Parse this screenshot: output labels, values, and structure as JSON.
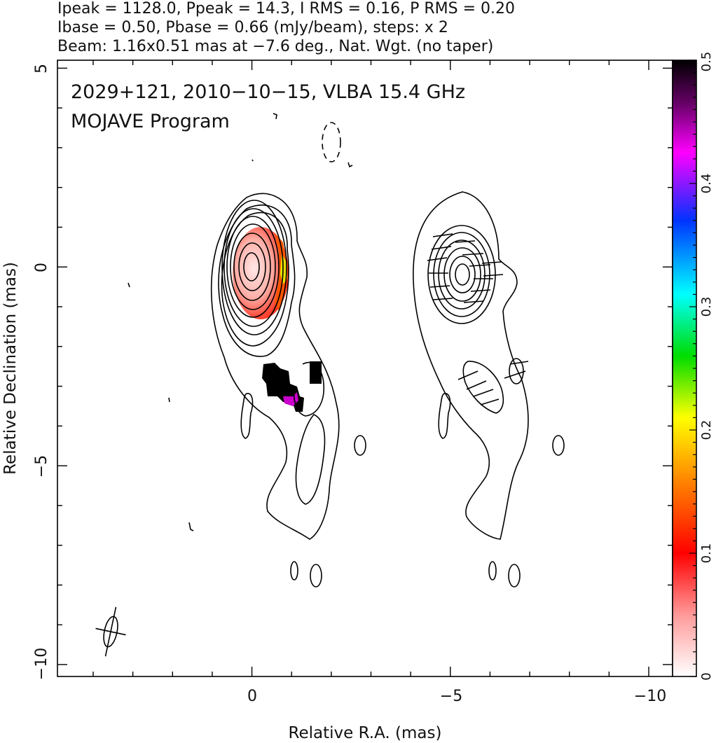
{
  "header": {
    "line1": "Ipeak = 1128.0, Ppeak = 14.3, I RMS = 0.16, P RMS = 0.20",
    "line2": "Ibase = 0.50, Pbase = 0.66 (mJy/beam), steps: x 2",
    "line3": "Beam: 1.16x0.51 mas at −7.6 deg., Nat. Wgt. (no taper)"
  },
  "annotation": {
    "line1": "2029+121, 2010−10−15, VLBA 15.4 GHz",
    "line2": "MOJAVE Program"
  },
  "chart_data": {
    "type": "heatmap",
    "xlabel": "Relative R.A. (mas)",
    "ylabel": "Relative Declination (mas)",
    "xlim": [
      4.9,
      -10.6
    ],
    "ylim": [
      -10.3,
      5.2
    ],
    "x_ticks": [
      "0",
      "−5",
      "−10"
    ],
    "y_ticks": [
      "5",
      "0",
      "−5",
      "−10"
    ],
    "colorbar": {
      "range": [
        0,
        0.5
      ],
      "ticks": [
        "0",
        "0.1",
        "0.2",
        "0.3",
        "0.4",
        "0.5"
      ]
    },
    "contour_panels": [
      {
        "name": "",
        "center_ra": 0.0,
        "center_dec": 0.0,
        "levels": 10
      },
      {
        "name": "",
        "center_ra": -5.2,
        "center_dec": -0.2,
        "levels": 7
      }
    ],
    "beam": {
      "major_mas": 1.16,
      "minor_mas": 0.51,
      "pa_deg": -7.6
    },
    "peak_mjy_per_beam": 1128.0,
    "ppeak_mjy_per_beam": 14.3,
    "i_rms": 0.16,
    "p_rms": 0.2,
    "ibase": 0.5,
    "pbase": 0.66,
    "steps": "x 2"
  }
}
